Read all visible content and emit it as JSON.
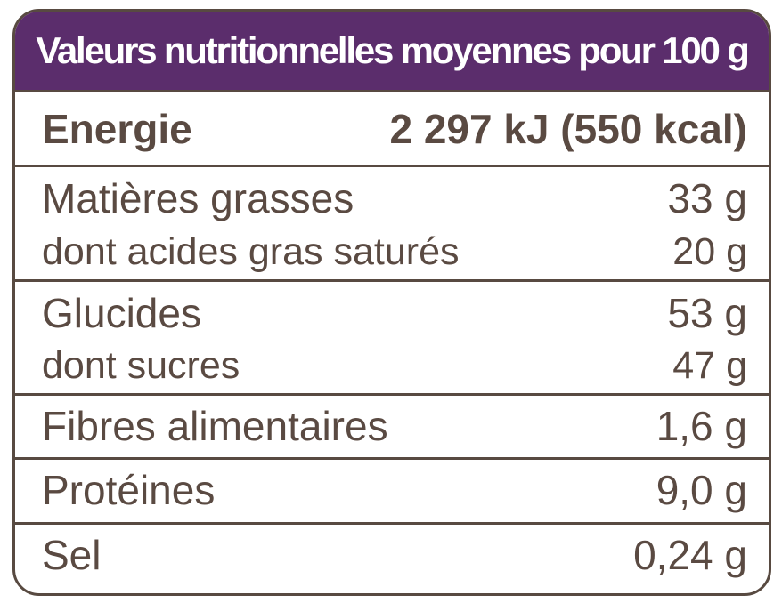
{
  "nutrition_table": {
    "title": "Valeurs nutritionnelles moyennes pour 100 g",
    "energy": {
      "label": "Energie",
      "value": "2 297 kJ (550 kcal)"
    },
    "fat": {
      "label": "Matières grasses",
      "value": "33 g",
      "sub_label": "dont acides gras saturés",
      "sub_value": "20 g"
    },
    "carbs": {
      "label": "Glucides",
      "value": "53 g",
      "sub_label": "dont sucres",
      "sub_value": "47 g"
    },
    "fiber": {
      "label": "Fibres alimentaires",
      "value": "1,6 g"
    },
    "protein": {
      "label": "Protéines",
      "value": "9,0 g"
    },
    "salt": {
      "label": "Sel",
      "value": "0,24 g"
    },
    "colors": {
      "header_background": "#5b2d6c",
      "header_text": "#ffffff",
      "border": "#584a41",
      "text": "#5a4a42"
    }
  }
}
